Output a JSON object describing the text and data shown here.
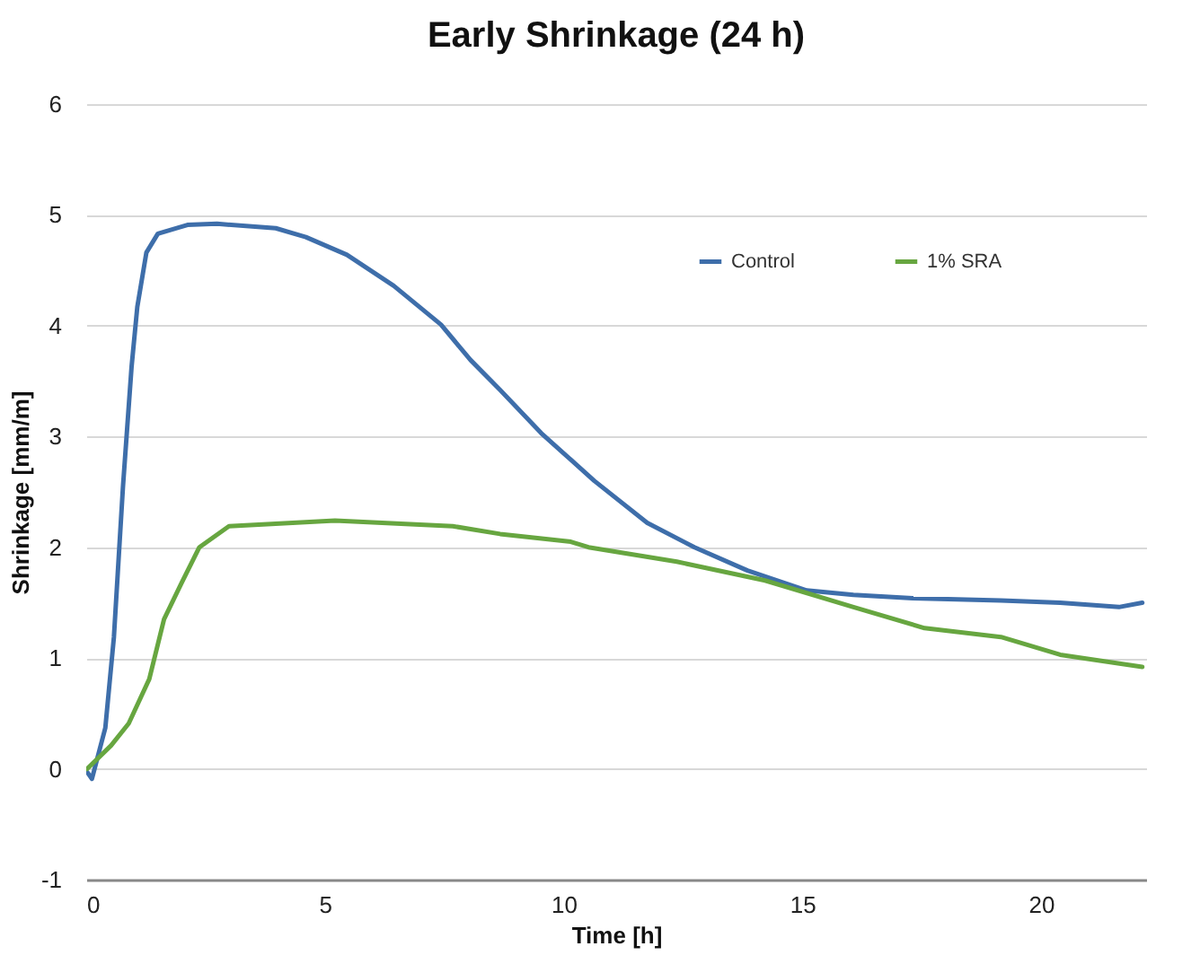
{
  "chart_data": {
    "type": "line",
    "title": "Early Shrinkage (24 h)",
    "xlabel": "Time [h]",
    "ylabel": "Shrinkage [mm/m]",
    "xlim": [
      0,
      22.2
    ],
    "xticks": [
      0,
      5,
      10,
      15,
      20
    ],
    "ylim": [
      -1,
      6
    ],
    "yticks": [
      -1,
      0,
      1,
      2,
      3,
      4,
      5,
      6
    ],
    "grid": "y",
    "legend": "top right",
    "marker": "none",
    "line_style": "solid",
    "series": [
      {
        "name": "Control",
        "color": "#3e6eaa",
        "x": [
          0.02,
          0.12,
          0.4,
          0.58,
          0.77,
          0.95,
          1.07,
          1.26,
          1.5,
          2.12,
          2.74,
          3.97,
          4.6,
          5.46,
          6.44,
          7.43,
          8.05,
          8.67,
          9.53,
          10.15,
          10.64,
          11.75,
          12.74,
          13.85,
          15.09,
          16.07,
          17.31,
          19.16,
          20.4,
          21.63,
          22.12
        ],
        "values": [
          -0.03,
          -0.09,
          0.37,
          1.19,
          2.55,
          3.63,
          4.17,
          4.66,
          4.83,
          4.91,
          4.92,
          4.88,
          4.8,
          4.64,
          4.36,
          4.01,
          3.69,
          3.42,
          3.03,
          2.79,
          2.6,
          2.22,
          2.0,
          1.79,
          1.61,
          1.57,
          1.54,
          1.52,
          1.5,
          1.46,
          1.5
        ]
      },
      {
        "name": "1% SRA",
        "color": "#67a640",
        "x": [
          0.02,
          0.52,
          0.89,
          1.32,
          1.63,
          2.0,
          2.37,
          2.99,
          5.21,
          7.68,
          8.67,
          10.15,
          10.52,
          12.37,
          14.22,
          16.07,
          17.56,
          19.16,
          20.4,
          22.12
        ],
        "values": [
          0,
          0.21,
          0.41,
          0.81,
          1.35,
          1.68,
          2.0,
          2.19,
          2.24,
          2.19,
          2.12,
          2.05,
          2.0,
          1.87,
          1.7,
          1.46,
          1.27,
          1.19,
          1.03,
          0.92
        ]
      }
    ]
  }
}
